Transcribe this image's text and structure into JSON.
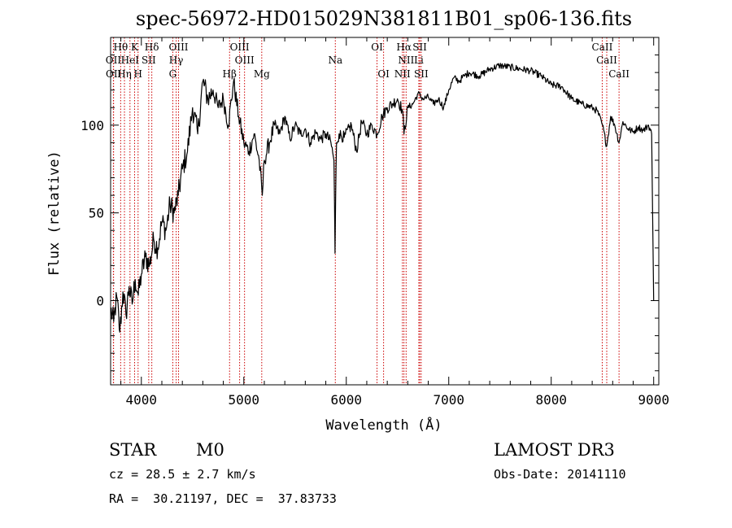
{
  "chart_data": {
    "type": "line",
    "title": "spec-56972-HD015029N381811B01_sp06-136.fits",
    "xlabel": "Wavelength (Å)",
    "ylabel": "Flux (relative)",
    "xlim": [
      3700,
      9050
    ],
    "ylim": [
      -48,
      150
    ],
    "x_ticks": [
      4000,
      5000,
      6000,
      7000,
      8000,
      9000
    ],
    "y_ticks": [
      0,
      50,
      100
    ],
    "x_tick_labels": [
      "4000",
      "5000",
      "6000",
      "7000",
      "8000",
      "9000"
    ],
    "y_tick_labels": [
      "0",
      "50",
      "100"
    ],
    "grid": false,
    "line_color": "#000000",
    "marker_color": "#cc0000",
    "series": [
      {
        "x": [
          3700,
          3730,
          3760,
          3790,
          3820,
          3850,
          3880,
          3910,
          3940,
          3970,
          4000,
          4040,
          4080,
          4120,
          4160,
          4200,
          4240,
          4280,
          4320,
          4360,
          4400,
          4450,
          4500,
          4550,
          4600,
          4650,
          4700,
          4750,
          4800,
          4850,
          4900,
          4950,
          5000,
          5050,
          5100,
          5150,
          5180,
          5200,
          5250,
          5300,
          5350,
          5400,
          5450,
          5500,
          5550,
          5600,
          5650,
          5700,
          5750,
          5800,
          5850,
          5880,
          5890,
          5896,
          5905,
          5930,
          5980,
          6050,
          6100,
          6150,
          6200,
          6250,
          6300,
          6350,
          6400,
          6450,
          6500,
          6550,
          6563,
          6600,
          6650,
          6700,
          6750,
          6800,
          6850,
          6900,
          6950,
          7000,
          7050,
          7100,
          7150,
          7200,
          7300,
          7400,
          7500,
          7600,
          7700,
          7800,
          7900,
          8000,
          8100,
          8200,
          8300,
          8400,
          8450,
          8500,
          8542,
          8580,
          8620,
          8662,
          8700,
          8750,
          8800,
          8850,
          8900,
          8950,
          8980,
          9000
        ],
        "y": [
          -5,
          -12,
          2,
          -18,
          5,
          -8,
          8,
          -2,
          12,
          3,
          15,
          25,
          20,
          35,
          30,
          45,
          40,
          55,
          50,
          60,
          75,
          85,
          110,
          95,
          125,
          115,
          120,
          110,
          115,
          100,
          125,
          105,
          90,
          85,
          95,
          80,
          60,
          80,
          90,
          100,
          95,
          105,
          92,
          100,
          95,
          98,
          90,
          96,
          92,
          95,
          90,
          80,
          27,
          60,
          90,
          95,
          93,
          100,
          85,
          102,
          95,
          100,
          95,
          105,
          110,
          112,
          115,
          108,
          95,
          110,
          112,
          118,
          115,
          116,
          112,
          115,
          110,
          120,
          127,
          125,
          128,
          130,
          128,
          132,
          134,
          133,
          132,
          131,
          128,
          123,
          122,
          115,
          112,
          110,
          108,
          100,
          88,
          105,
          100,
          90,
          102,
          98,
          96,
          99,
          97,
          100,
          95,
          0
        ]
      }
    ],
    "lines": [
      {
        "label": "Hθ",
        "x": 3798,
        "row": 1
      },
      {
        "label": "K",
        "x": 3934,
        "row": 1
      },
      {
        "label": "Hδ",
        "x": 4102,
        "row": 1
      },
      {
        "label": "OIII",
        "x": 4363,
        "row": 1
      },
      {
        "label": "OIII",
        "x": 4959,
        "row": 1
      },
      {
        "label": "OI",
        "x": 6300,
        "row": 1
      },
      {
        "label": "Hα",
        "x": 6563,
        "row": 1
      },
      {
        "label": "SII",
        "x": 6717,
        "row": 1
      },
      {
        "label": "CaII",
        "x": 8498,
        "row": 1
      },
      {
        "label": "OII",
        "x": 3727,
        "row": 2
      },
      {
        "label": "HeI",
        "x": 3889,
        "row": 2
      },
      {
        "label": "SII",
        "x": 4072,
        "row": 2
      },
      {
        "label": "Hγ",
        "x": 4340,
        "row": 2
      },
      {
        "label": "OIII",
        "x": 5007,
        "row": 2
      },
      {
        "label": "Na",
        "x": 5893,
        "row": 2
      },
      {
        "label": "NII",
        "x": 6584,
        "row": 2
      },
      {
        "label": "Li",
        "x": 6708,
        "row": 2
      },
      {
        "label": "CaII",
        "x": 8542,
        "row": 2
      },
      {
        "label": "OII",
        "x": 3729,
        "row": 3
      },
      {
        "label": "Hη",
        "x": 3835,
        "row": 3
      },
      {
        "label": "H",
        "x": 3968,
        "row": 3
      },
      {
        "label": "G",
        "x": 4307,
        "row": 3
      },
      {
        "label": "Hβ",
        "x": 4861,
        "row": 3
      },
      {
        "label": "Mg",
        "x": 5175,
        "row": 3
      },
      {
        "label": "OI",
        "x": 6364,
        "row": 3
      },
      {
        "label": "NII",
        "x": 6548,
        "row": 3
      },
      {
        "label": "SII",
        "x": 6731,
        "row": 3
      },
      {
        "label": "CaII",
        "x": 8662,
        "row": 3
      }
    ]
  },
  "info": {
    "object_class": "STAR",
    "subclass": "M0",
    "survey": "LAMOST DR3",
    "redshift": "cz = 28.5 ± 2.7 km/s",
    "obs_date": "Obs-Date: 20141110",
    "coords": "RA =  30.21197, DEC =  37.83733"
  }
}
